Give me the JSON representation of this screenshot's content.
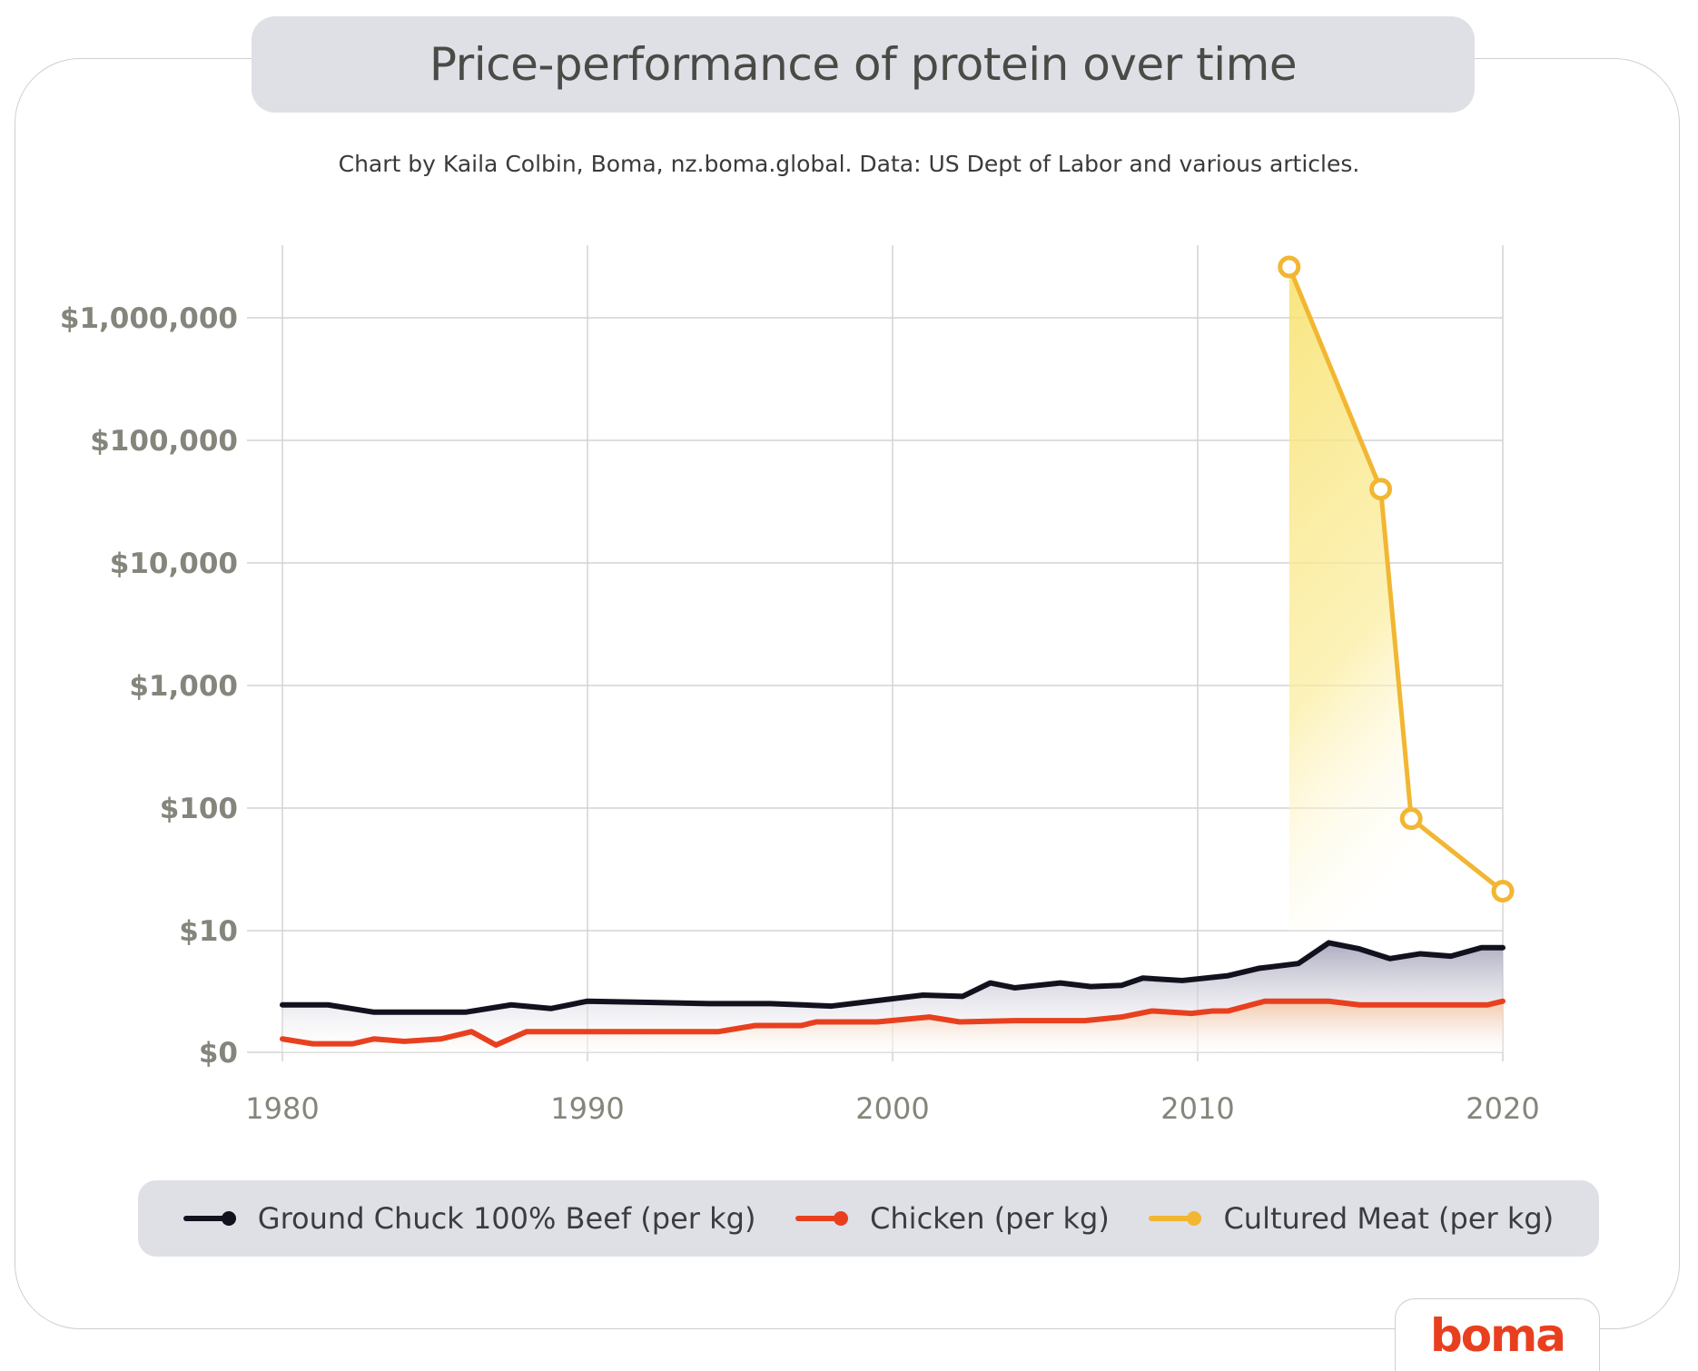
{
  "title": "Price-performance of protein over time",
  "subtitle": "Chart by Kaila Colbin, Boma, nz.boma.global. Data: US Dept of Labor and various articles.",
  "logo": "boma",
  "colors": {
    "beef": "#12121f",
    "chicken": "#e8401f",
    "cultured": "#f2b632",
    "grid": "#d4d4d4",
    "axis_text": "#85857c"
  },
  "chart_data": {
    "type": "line",
    "title": "Price-performance of protein over time",
    "xlabel": "",
    "ylabel": "",
    "y_scale": "log-like (pseudo-log, $0 baseline)",
    "xlim": [
      1980,
      2020
    ],
    "x_ticks": [
      1980,
      1990,
      2000,
      2010,
      2020
    ],
    "x_tick_labels": [
      "1980",
      "1990",
      "2000",
      "2010",
      "2020"
    ],
    "y_ticks": [
      0,
      10,
      100,
      1000,
      10000,
      100000,
      1000000
    ],
    "y_tick_labels": [
      "$0",
      "$10",
      "$100",
      "$1,000",
      "$10,000",
      "$100,000",
      "$1,000,000"
    ],
    "grid": true,
    "legend_position": "bottom",
    "series": [
      {
        "name": "Ground Chuck 100% Beef (per kg)",
        "color": "#12121f",
        "points": [
          [
            1980,
            3.9
          ],
          [
            1981.5,
            3.9
          ],
          [
            1983,
            3.3
          ],
          [
            1984.5,
            3.3
          ],
          [
            1986,
            3.3
          ],
          [
            1987.5,
            3.9
          ],
          [
            1988.8,
            3.6
          ],
          [
            1990,
            4.2
          ],
          [
            1992,
            4.1
          ],
          [
            1994,
            4.0
          ],
          [
            1996,
            4.0
          ],
          [
            1998,
            3.8
          ],
          [
            2000,
            4.4
          ],
          [
            2001,
            4.7
          ],
          [
            2002.3,
            4.6
          ],
          [
            2003.2,
            5.7
          ],
          [
            2004,
            5.3
          ],
          [
            2005.5,
            5.7
          ],
          [
            2006.5,
            5.4
          ],
          [
            2007.5,
            5.5
          ],
          [
            2008.2,
            6.1
          ],
          [
            2009.5,
            5.9
          ],
          [
            2011,
            6.3
          ],
          [
            2012,
            6.9
          ],
          [
            2013.3,
            7.3
          ],
          [
            2014.3,
            9.0
          ],
          [
            2015.3,
            8.5
          ],
          [
            2016.3,
            7.7
          ],
          [
            2017.3,
            8.1
          ],
          [
            2018.3,
            7.9
          ],
          [
            2019.3,
            8.6
          ],
          [
            2020,
            8.6
          ]
        ]
      },
      {
        "name": "Chicken (per kg)",
        "color": "#e8401f",
        "points": [
          [
            1980,
            1.1
          ],
          [
            1981,
            0.7
          ],
          [
            1982.3,
            0.7
          ],
          [
            1983,
            1.1
          ],
          [
            1984,
            0.9
          ],
          [
            1985.2,
            1.1
          ],
          [
            1986.2,
            1.7
          ],
          [
            1987,
            0.6
          ],
          [
            1988,
            1.7
          ],
          [
            1990,
            1.7
          ],
          [
            1993,
            1.7
          ],
          [
            1994.3,
            1.7
          ],
          [
            1995.5,
            2.2
          ],
          [
            1997,
            2.2
          ],
          [
            1997.5,
            2.5
          ],
          [
            1999.5,
            2.5
          ],
          [
            2001.2,
            2.9
          ],
          [
            2002.2,
            2.5
          ],
          [
            2004,
            2.6
          ],
          [
            2005.3,
            2.6
          ],
          [
            2006.3,
            2.6
          ],
          [
            2007.5,
            2.9
          ],
          [
            2008.5,
            3.4
          ],
          [
            2009.8,
            3.2
          ],
          [
            2010.5,
            3.4
          ],
          [
            2011,
            3.4
          ],
          [
            2012.2,
            4.2
          ],
          [
            2014.3,
            4.2
          ],
          [
            2015.3,
            3.9
          ],
          [
            2019.5,
            3.9
          ],
          [
            2020,
            4.2
          ]
        ]
      },
      {
        "name": "Cultured Meat (per kg)",
        "color": "#f2b632",
        "points": [
          [
            2013,
            2600000
          ],
          [
            2016,
            40000
          ],
          [
            2017,
            82
          ],
          [
            2020,
            21
          ]
        ]
      }
    ]
  }
}
